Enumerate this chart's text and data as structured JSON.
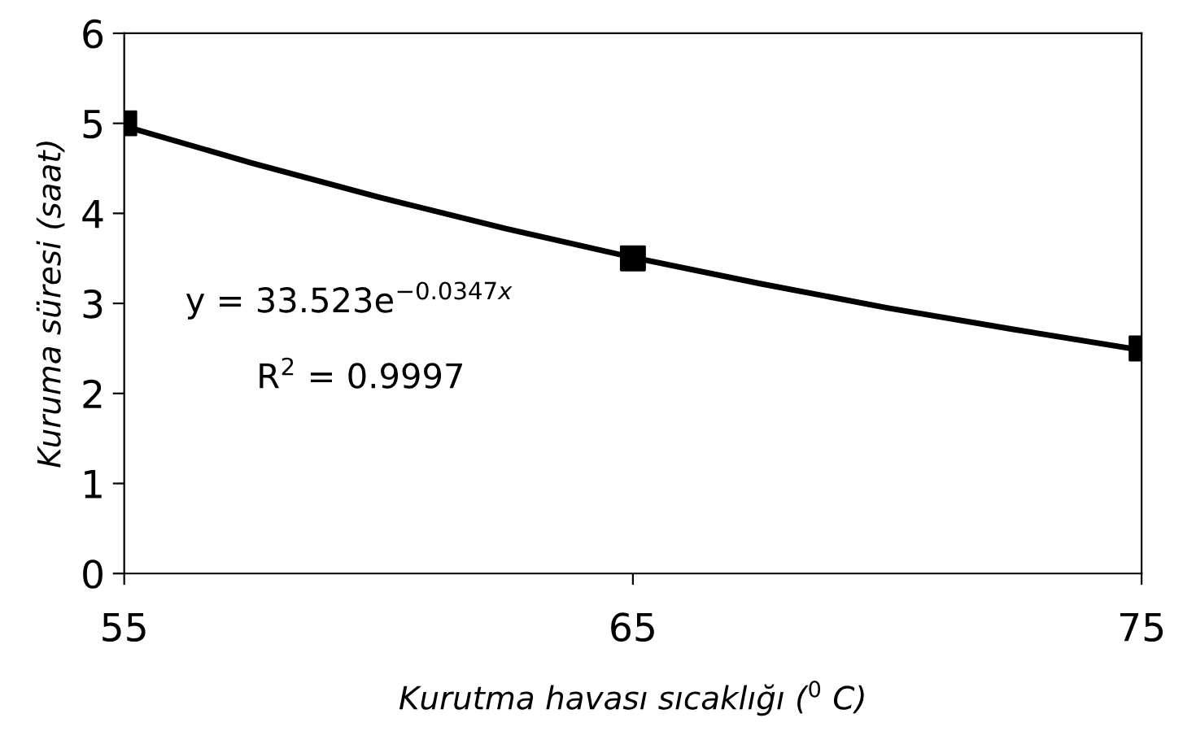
{
  "chart_data": {
    "type": "scatter",
    "xlabel": "Kurutma havası sıcaklığı ($^{0}$ C)",
    "ylabel": "Kuruma süresi (saat)",
    "xlim": [
      55,
      75
    ],
    "xticks": [
      55,
      65,
      75
    ],
    "ylim": [
      0,
      6
    ],
    "yticks": [
      0,
      1,
      2,
      3,
      4,
      5,
      6
    ],
    "grid": false,
    "legend": false,
    "annotations": [
      "y = 33.523e$^{−0.0347x}$",
      "R$^{2}$ = 0.9997"
    ],
    "series": [
      {
        "type": "line",
        "color": "#000000",
        "marker": "none",
        "line_style": "solid",
        "x": [
          55,
          57.5,
          60,
          62.5,
          65,
          67.5,
          70,
          72.5,
          75
        ],
        "values": [
          4.97,
          4.56,
          4.18,
          3.83,
          3.51,
          3.22,
          2.95,
          2.71,
          2.48
        ]
      },
      {
        "color": "#000000",
        "marker": "square",
        "x": [
          55,
          65,
          75
        ],
        "values": [
          5,
          3.5,
          2.5
        ]
      }
    ]
  }
}
